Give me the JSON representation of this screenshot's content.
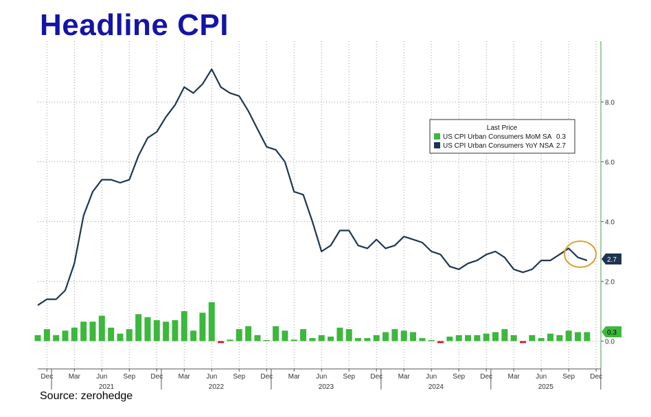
{
  "title": "Headline CPI",
  "source": "Source: zerohedge",
  "chart_data": {
    "type": "bar+line",
    "x_start": "2020-11",
    "months_x": [
      "Dec",
      "Mar",
      "Jun",
      "Sep",
      "Dec",
      "Mar",
      "Jun",
      "Sep",
      "Dec",
      "Mar",
      "Jun",
      "Sep",
      "Dec",
      "Mar",
      "Jun",
      "Sep",
      "Dec",
      "Mar",
      "Jun",
      "Sep",
      "Dec"
    ],
    "month_x_index": [
      1,
      4,
      7,
      10,
      13,
      16,
      19,
      22,
      25,
      28,
      31,
      34,
      37,
      40,
      43,
      46,
      49,
      52,
      55,
      58,
      61
    ],
    "years": [
      "2021",
      "2022",
      "2023",
      "2024",
      "2025"
    ],
    "year_center_index": [
      7.5,
      19.5,
      31.5,
      43.5,
      55.5
    ],
    "year_boundary_index": [
      1.5,
      13.5,
      25.5,
      37.5,
      49.5,
      61.5
    ],
    "ylim": [
      -0.9,
      9.6
    ],
    "yticks": [
      0.0,
      2.0,
      4.0,
      6.0,
      8.0
    ],
    "ytick_labels": [
      "0.0",
      "2.0",
      "4.0",
      "6.0",
      "8.0"
    ],
    "legend": {
      "title": "Last Price",
      "entries": [
        {
          "name": "US CPI Urban Consumers MoM SA",
          "value": "0.3",
          "color": "#3cb83c"
        },
        {
          "name": "US CPI Urban Consumers YoY NSA",
          "value": "2.7",
          "color": "#1e3550"
        }
      ]
    },
    "series": [
      {
        "name": "US CPI Urban Consumers YoY NSA",
        "type": "line",
        "color": "#1e3550",
        "last_value": "2.7",
        "values": [
          1.2,
          1.4,
          1.4,
          1.7,
          2.6,
          4.2,
          5.0,
          5.4,
          5.4,
          5.3,
          5.4,
          6.2,
          6.8,
          7.0,
          7.5,
          7.9,
          8.5,
          8.3,
          8.6,
          9.1,
          8.5,
          8.3,
          8.2,
          7.7,
          7.1,
          6.5,
          6.4,
          6.0,
          5.0,
          4.9,
          4.0,
          3.0,
          3.2,
          3.7,
          3.7,
          3.2,
          3.1,
          3.4,
          3.1,
          3.2,
          3.5,
          3.4,
          3.3,
          3.0,
          2.9,
          2.5,
          2.4,
          2.6,
          2.7,
          2.9,
          3.0,
          2.8,
          2.4,
          2.3,
          2.4,
          2.7,
          2.7,
          2.9,
          3.1,
          2.8,
          2.7
        ]
      },
      {
        "name": "US CPI Urban Consumers MoM SA",
        "type": "bar",
        "color": "#3cb83c",
        "negative_color": "#c0282d",
        "last_value": "0.3",
        "values": [
          0.2,
          0.4,
          0.2,
          0.35,
          0.45,
          0.65,
          0.65,
          0.85,
          0.45,
          0.25,
          0.4,
          0.9,
          0.8,
          0.7,
          0.65,
          0.7,
          1.0,
          0.35,
          0.95,
          1.3,
          -0.05,
          0.05,
          0.4,
          0.5,
          0.2,
          0.0,
          0.5,
          0.35,
          0.05,
          0.4,
          0.1,
          0.2,
          0.15,
          0.45,
          0.4,
          0.1,
          0.1,
          0.2,
          0.3,
          0.4,
          0.35,
          0.3,
          0.1,
          0.0,
          -0.05,
          0.15,
          0.2,
          0.2,
          0.2,
          0.25,
          0.3,
          0.4,
          0.2,
          -0.05,
          0.2,
          0.1,
          0.25,
          0.2,
          0.35,
          0.3,
          0.3
        ]
      }
    ]
  }
}
